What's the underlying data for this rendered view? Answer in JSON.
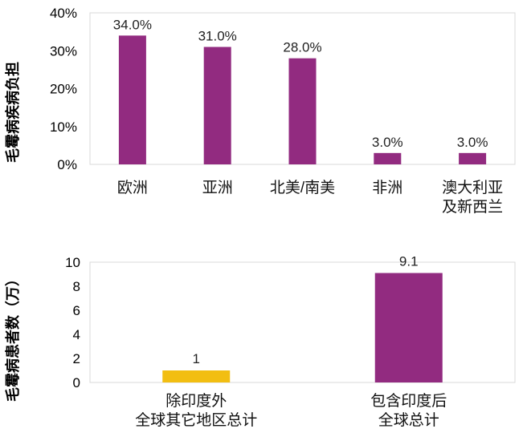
{
  "chart_data": [
    {
      "type": "bar",
      "ylabel": "毛霉病疾病负担",
      "categories": [
        "欧洲",
        "亚洲",
        "北美/南美",
        "非洲",
        "澳大利亚\n及新西兰"
      ],
      "values": [
        34.0,
        31.0,
        28.0,
        3.0,
        3.0
      ],
      "data_labels": [
        "34.0%",
        "31.0%",
        "28.0%",
        "3.0%",
        "3.0%"
      ],
      "y_ticks": [
        "0%",
        "10%",
        "20%",
        "30%",
        "40%"
      ],
      "ylim": [
        0,
        40
      ],
      "grid": false,
      "colors": [
        "#922B80",
        "#922B80",
        "#922B80",
        "#922B80",
        "#922B80"
      ]
    },
    {
      "type": "bar",
      "ylabel": "毛霉病患者数（万）",
      "categories": [
        "除印度外\n全球其它地区总计",
        "包含印度后\n全球总计"
      ],
      "values": [
        1,
        9.1
      ],
      "data_labels": [
        "1",
        "9.1"
      ],
      "y_ticks": [
        "0",
        "2",
        "4",
        "6",
        "8",
        "10"
      ],
      "ylim": [
        0,
        10
      ],
      "grid": false,
      "colors": [
        "#F2BE12",
        "#922B80"
      ]
    }
  ]
}
